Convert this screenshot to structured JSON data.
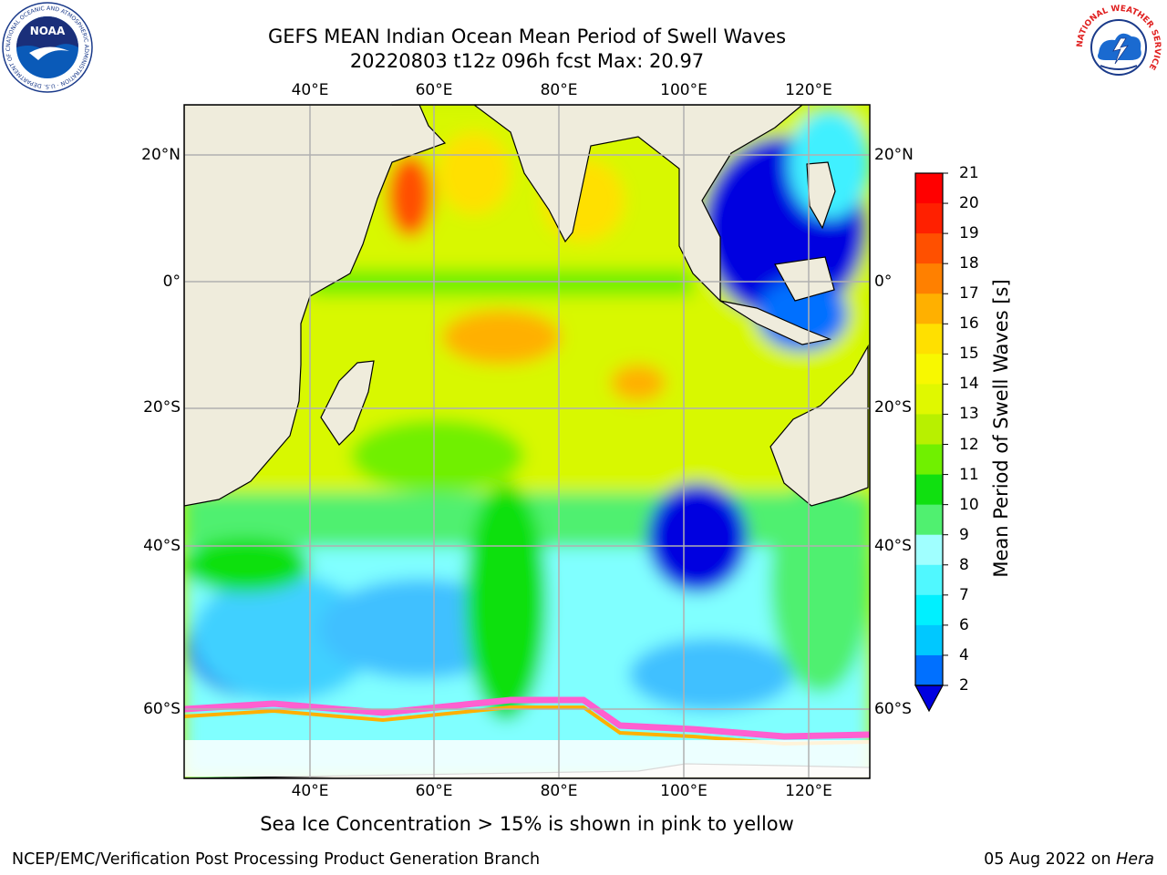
{
  "header": {
    "title": "GEFS MEAN Indian Ocean Mean Period of Swell Waves",
    "subtitle": "20220803 t12z 096h fcst   Max: 20.97"
  },
  "logos": {
    "left": "NOAA",
    "left_ring": "NATIONAL OCEANIC AND ATMOSPHERIC ADMINISTRATION · U.S. DEPARTMENT OF COMMERCE",
    "right_ring": "NATIONAL WEATHER SERVICE"
  },
  "map": {
    "lon_labels": [
      "40°E",
      "60°E",
      "80°E",
      "100°E",
      "120°E"
    ],
    "lat_labels": [
      "20°N",
      "0°",
      "20°S",
      "40°S",
      "60°S"
    ],
    "colors": {
      "land": "#efecdc",
      "grid": "#b0b0b0",
      "ice": "#ff5fd0"
    }
  },
  "colorbar": {
    "label": "Mean Period of Swell Waves [s]",
    "ticks": [
      "2",
      "4",
      "6",
      "7",
      "8",
      "9",
      "10",
      "11",
      "12",
      "13",
      "14",
      "15",
      "16",
      "17",
      "18",
      "19",
      "20",
      "21"
    ],
    "colors": [
      "#0000e0",
      "#0070ff",
      "#00c8ff",
      "#00f0ff",
      "#50f8ff",
      "#a0ffff",
      "#50f070",
      "#10e010",
      "#70f000",
      "#b8f000",
      "#e0f800",
      "#f8f800",
      "#ffe000",
      "#ffb000",
      "#ff8000",
      "#ff5000",
      "#ff2000",
      "#ff0000"
    ]
  },
  "footer": {
    "note": "Sea Ice Concentration > 15% is shown in pink to yellow",
    "credit": "NCEP/EMC/Verification Post Processing Product Generation Branch",
    "date": "05 Aug 2022 on",
    "host": "Hera"
  }
}
